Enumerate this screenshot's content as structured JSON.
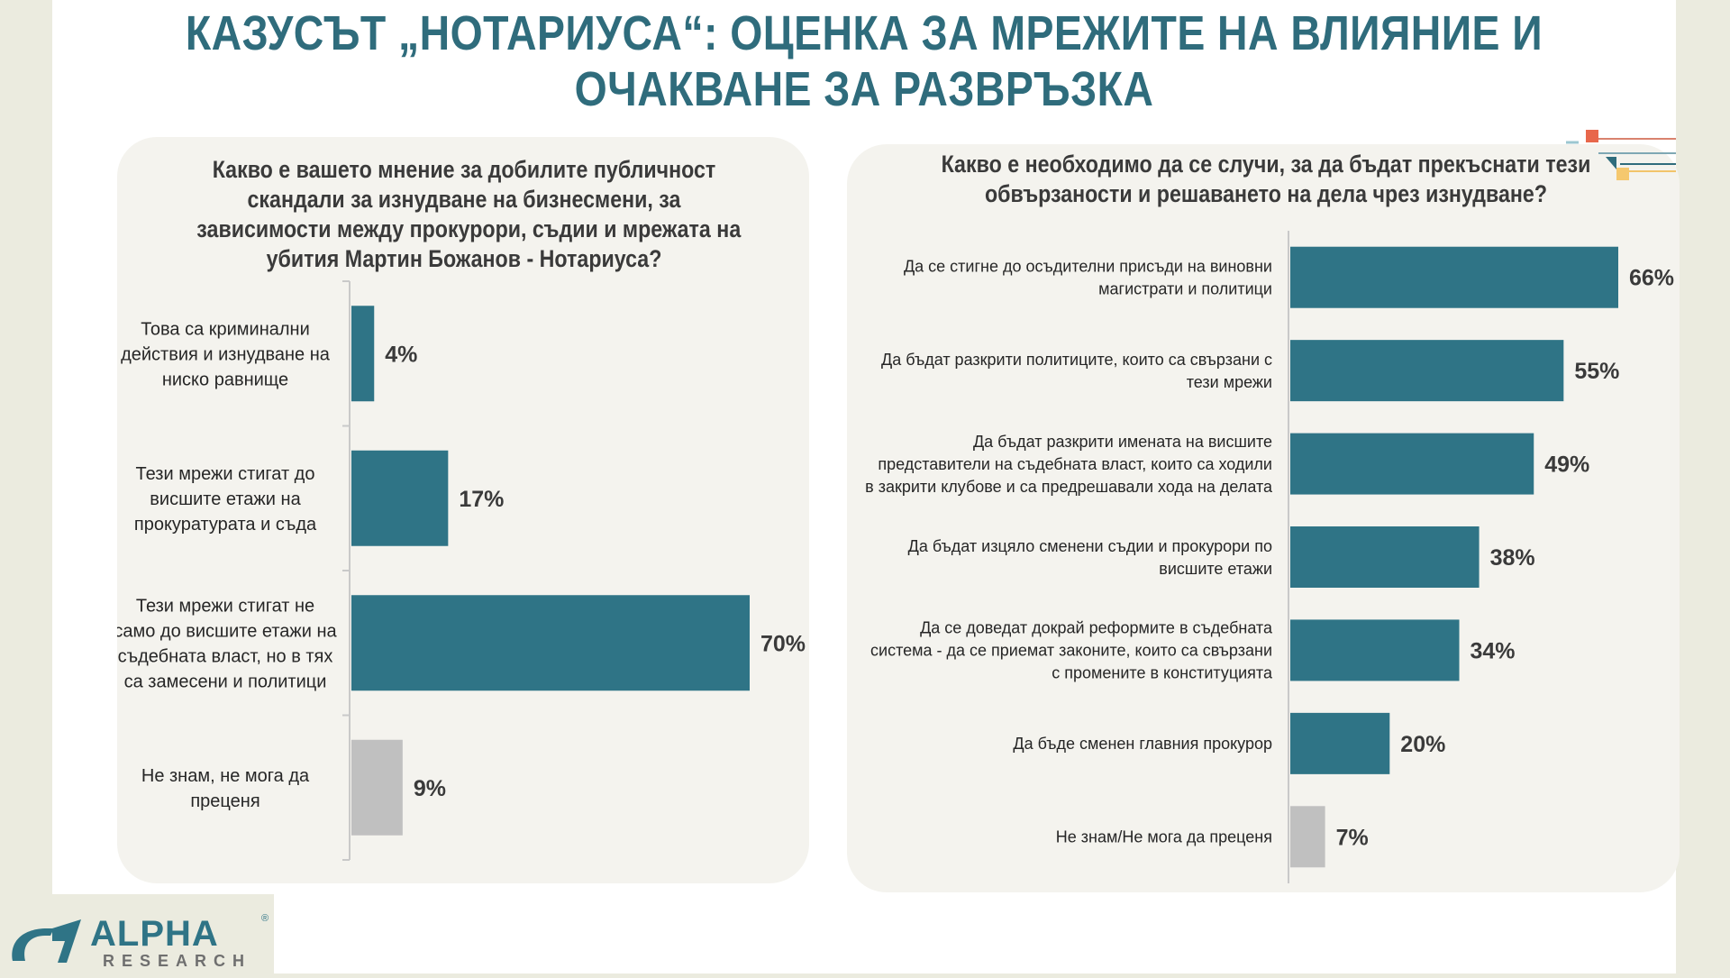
{
  "title": {
    "line1": "КАЗУСЪТ „НОТАРИУСА“: ОЦЕНКА ЗА МРЕЖИТЕ НА ВЛИЯНИЕ И",
    "line2": "ОЧАКВАНЕ ЗА РАЗВРЪЗКА"
  },
  "left": {
    "question": [
      "Какво е вашето мнение за добилите публичност",
      "скандали за изнудване на бизнесмени, за",
      "зависимости между прокурори, съдии и мрежата на",
      "убития Мартин Божанов - Нотариуса?"
    ]
  },
  "right": {
    "question": [
      "Какво е необходимо да се случи, за да бъдат прекъснати тези",
      "обвързаности и решаването на дела чрез изнудване?"
    ]
  },
  "logo": {
    "word": "ALPHA",
    "sub": "RESEARCH",
    "reg": "®"
  },
  "colors": {
    "bar": "#2f7486",
    "neutral": "#c0c0c0",
    "title": "#2f6c7c"
  },
  "chart_data": [
    {
      "type": "bar",
      "orientation": "horizontal",
      "title": "Какво е вашето мнение за добилите публичност скандали за изнудване на бизнесмени, за зависимости между прокурори, съдии и мрежата на убития Мартин Божанов - Нотариуса?",
      "categories": [
        [
          "Това са криминални",
          "действия и изнудване на",
          "ниско равнище"
        ],
        [
          "Тези мрежи стигат до",
          "висшите етажи на",
          "прокуратурата и съда"
        ],
        [
          "Тези мрежи стигат не",
          "само до висшите етажи на",
          "съдебната власт, но в тях",
          "са замесени и политици"
        ],
        [
          "Не знам, не мога да",
          "преценя"
        ]
      ],
      "values": [
        4,
        17,
        70,
        9
      ],
      "labels": [
        "4%",
        "17%",
        "70%",
        "9%"
      ],
      "neutral_index": 3,
      "xlim": [
        0,
        70
      ]
    },
    {
      "type": "bar",
      "orientation": "horizontal",
      "title": "Какво е необходимо да се случи, за да бъдат прекъснати тези обвързаности и решаването на дела чрез изнудване?",
      "categories": [
        [
          "Да се стигне до осъдителни присъди на виновни",
          "магистрати и политици"
        ],
        [
          "Да бъдат разкрити политиците, които са свързани с",
          "тези мрежи"
        ],
        [
          "Да бъдат разкрити имената на висшите",
          "представители на съдебната власт, които са ходили",
          "в закрити клубове и са предрешавали хода на делата"
        ],
        [
          "Да бъдат изцяло сменени съдии и прокурори по",
          "висшите етажи"
        ],
        [
          "Да се доведат докрай реформите в съдебната",
          "система - да се приемат законите, които са свързани",
          "с промените в конституцията"
        ],
        [
          "Да бъде сменен главния прокурор"
        ],
        [
          "Не знам/Не мога да преценя"
        ]
      ],
      "values": [
        66,
        55,
        49,
        38,
        34,
        20,
        7
      ],
      "labels": [
        "66%",
        "55%",
        "49%",
        "38%",
        "34%",
        "20%",
        "7%"
      ],
      "neutral_index": 6,
      "xlim": [
        0,
        66
      ]
    }
  ]
}
